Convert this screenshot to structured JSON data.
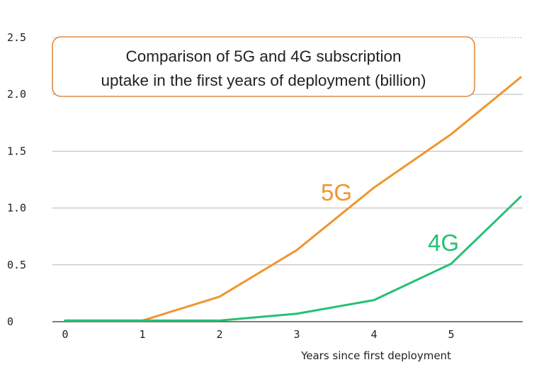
{
  "chart_data": {
    "type": "line",
    "title_lines": [
      "Comparison of 5G and 4G subscription",
      "uptake in the first years of deployment (billion)"
    ],
    "xlabel": "Years since first deployment",
    "ylabel": "",
    "x": [
      0,
      1,
      2,
      3,
      4,
      5,
      5.9
    ],
    "xticks": [
      "0",
      "1",
      "2",
      "3",
      "4",
      "5"
    ],
    "yticks": [
      "0",
      "0.5",
      "1.0",
      "1.5",
      "2.0",
      "2.5"
    ],
    "xlim": [
      0,
      5.9
    ],
    "ylim": [
      0,
      2.5
    ],
    "grid": true,
    "series": [
      {
        "name": "5G",
        "color": "#f0962e",
        "values": [
          0.01,
          0.01,
          0.22,
          0.63,
          1.18,
          1.65,
          2.15
        ]
      },
      {
        "name": "4G",
        "color": "#25c174",
        "values": [
          0.01,
          0.01,
          0.01,
          0.07,
          0.19,
          0.51,
          1.1
        ]
      }
    ],
    "title_box_border_color": "#e08a45"
  }
}
